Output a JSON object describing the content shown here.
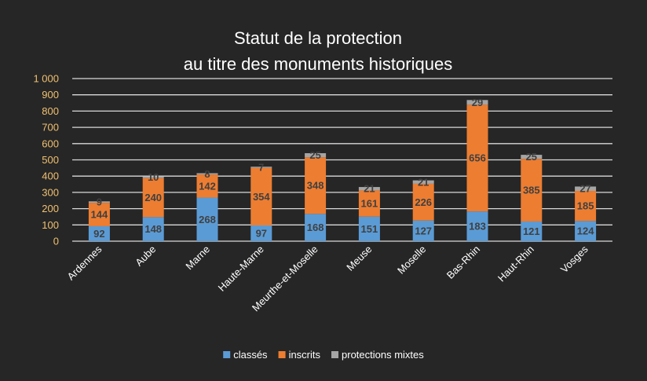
{
  "chart_data": {
    "type": "bar",
    "stacked": true,
    "title": [
      "Statut de la protection",
      "au titre des monuments historiques"
    ],
    "categories": [
      "Ardennes",
      "Aube",
      "Marne",
      "Haute-Marne",
      "Meurthe-et-Moselle",
      "Meuse",
      "Moselle",
      "Bas-Rhin",
      "Haut-Rhin",
      "Vosges"
    ],
    "series": [
      {
        "name": "classés",
        "color": "#5b9bd5",
        "values": [
          92,
          148,
          268,
          97,
          168,
          151,
          127,
          183,
          121,
          124
        ]
      },
      {
        "name": "inscrits",
        "color": "#ed7d31",
        "values": [
          144,
          240,
          142,
          354,
          348,
          161,
          226,
          656,
          385,
          185
        ]
      },
      {
        "name": "protections mixtes",
        "color": "#a5a5a5",
        "values": [
          9,
          10,
          8,
          7,
          25,
          21,
          21,
          29,
          25,
          27
        ]
      }
    ],
    "ylim": [
      0,
      1000
    ],
    "yticks": [
      0,
      100,
      200,
      300,
      400,
      500,
      600,
      700,
      800,
      900,
      1000
    ],
    "ytick_labels": [
      "0",
      "100",
      "200",
      "300",
      "400",
      "500",
      "600",
      "700",
      "800",
      "900",
      "1 000"
    ],
    "grid": true,
    "legend": "bottom",
    "xlabel": "",
    "ylabel": ""
  }
}
